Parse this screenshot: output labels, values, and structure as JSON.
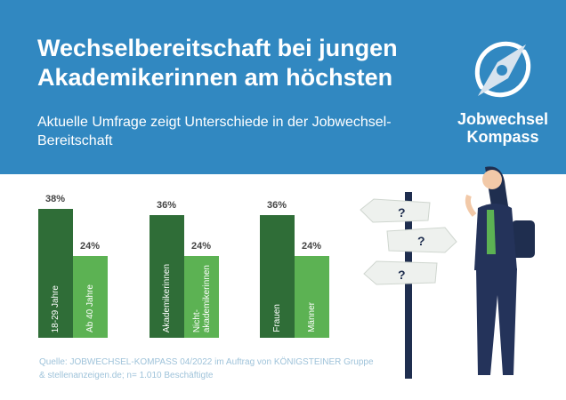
{
  "header": {
    "title": "Wechselbereitschaft bei jungen Akademikerinnen am höchsten",
    "subtitle": "Aktuelle Umfrage zeigt Unterschiede in der Jobwechsel-Bereitschaft",
    "logo": {
      "line1": "Jobwechsel",
      "line2": "Kompass"
    }
  },
  "colors": {
    "header": "#3188c1",
    "dark_green": "#2f6d37",
    "light_green": "#5cb253"
  },
  "chart_data": {
    "type": "bar",
    "unit": "%",
    "ylim": [
      0,
      40
    ],
    "groups": [
      {
        "bars": [
          {
            "label": "18-29 Jahre",
            "value": 38,
            "text": "38%",
            "shade": "dark"
          },
          {
            "label": "Ab 40 Jahre",
            "value": 24,
            "text": "24%",
            "shade": "light"
          }
        ]
      },
      {
        "bars": [
          {
            "label": "Akademikerinnen",
            "value": 36,
            "text": "36%",
            "shade": "dark"
          },
          {
            "label": "Nicht-\nakademikerinnen",
            "value": 24,
            "text": "24%",
            "shade": "light"
          }
        ]
      },
      {
        "bars": [
          {
            "label": "Frauen",
            "value": 36,
            "text": "36%",
            "shade": "dark"
          },
          {
            "label": "Männer",
            "value": 24,
            "text": "24%",
            "shade": "light"
          }
        ]
      }
    ]
  },
  "illustration": {
    "sign_text": "?"
  },
  "source": "Quelle: JOBWECHSEL-KOMPASS 04/2022 im Auftrag von KÖNIGSTEINER Gruppe & stellenanzeigen.de; n= 1.010 Beschäftigte"
}
